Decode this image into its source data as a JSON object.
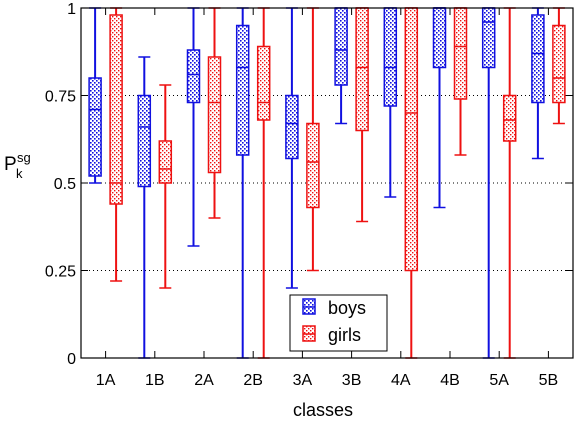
{
  "chart_data": {
    "type": "box",
    "xlabel": "classes",
    "ylabel_main": "P",
    "ylabel_sub": "k",
    "ylabel_sup": "sg",
    "categories": [
      "1A",
      "1B",
      "2A",
      "2B",
      "3A",
      "3B",
      "4A",
      "4B",
      "5A",
      "5B"
    ],
    "ylim": [
      0,
      1
    ],
    "yticks": [
      0,
      0.25,
      0.5,
      0.75,
      1
    ],
    "ytick_labels": [
      "0",
      "0.25",
      "0.5",
      "0.75",
      "1"
    ],
    "grid": "horizontal dotted at 0.25, 0.5, 0.75",
    "legend_position": "bottom-center",
    "series": [
      {
        "name": "boys",
        "color": "#1010e0",
        "pattern": "dots",
        "boxes": [
          {
            "min": 0.5,
            "q1": 0.52,
            "median": 0.71,
            "q3": 0.8,
            "max": 1.0
          },
          {
            "min": 0.0,
            "q1": 0.49,
            "median": 0.66,
            "q3": 0.75,
            "max": 0.86
          },
          {
            "min": 0.32,
            "q1": 0.73,
            "median": 0.81,
            "q3": 0.88,
            "max": 1.0
          },
          {
            "min": 0.0,
            "q1": 0.58,
            "median": 0.83,
            "q3": 0.95,
            "max": 1.0
          },
          {
            "min": 0.2,
            "q1": 0.57,
            "median": 0.67,
            "q3": 0.75,
            "max": 1.0
          },
          {
            "min": 0.67,
            "q1": 0.78,
            "median": 0.88,
            "q3": 1.0,
            "max": 1.0
          },
          {
            "min": 0.46,
            "q1": 0.72,
            "median": 0.83,
            "q3": 1.0,
            "max": 1.0
          },
          {
            "min": 0.43,
            "q1": 0.83,
            "median": 1.0,
            "q3": 1.0,
            "max": 1.0
          },
          {
            "min": 0.0,
            "q1": 0.83,
            "median": 0.96,
            "q3": 1.0,
            "max": 1.0
          },
          {
            "min": 0.57,
            "q1": 0.73,
            "median": 0.87,
            "q3": 0.98,
            "max": 1.0
          }
        ]
      },
      {
        "name": "girls",
        "color": "#ee1111",
        "pattern": "dots",
        "boxes": [
          {
            "min": 0.22,
            "q1": 0.44,
            "median": 0.5,
            "q3": 0.98,
            "max": 1.0
          },
          {
            "min": 0.2,
            "q1": 0.5,
            "median": 0.54,
            "q3": 0.62,
            "max": 0.78
          },
          {
            "min": 0.4,
            "q1": 0.53,
            "median": 0.73,
            "q3": 0.86,
            "max": 1.0
          },
          {
            "min": 0.0,
            "q1": 0.68,
            "median": 0.73,
            "q3": 0.89,
            "max": 1.0
          },
          {
            "min": 0.25,
            "q1": 0.43,
            "median": 0.56,
            "q3": 0.67,
            "max": 1.0
          },
          {
            "min": 0.39,
            "q1": 0.65,
            "median": 0.83,
            "q3": 1.0,
            "max": 1.0
          },
          {
            "min": 0.0,
            "q1": 0.25,
            "median": 0.7,
            "q3": 1.0,
            "max": 1.0
          },
          {
            "min": 0.58,
            "q1": 0.74,
            "median": 0.89,
            "q3": 1.0,
            "max": 1.0
          },
          {
            "min": 0.0,
            "q1": 0.62,
            "median": 0.68,
            "q3": 0.75,
            "max": 1.0
          },
          {
            "min": 0.67,
            "q1": 0.73,
            "median": 0.8,
            "q3": 0.95,
            "max": 1.0
          }
        ]
      }
    ]
  }
}
